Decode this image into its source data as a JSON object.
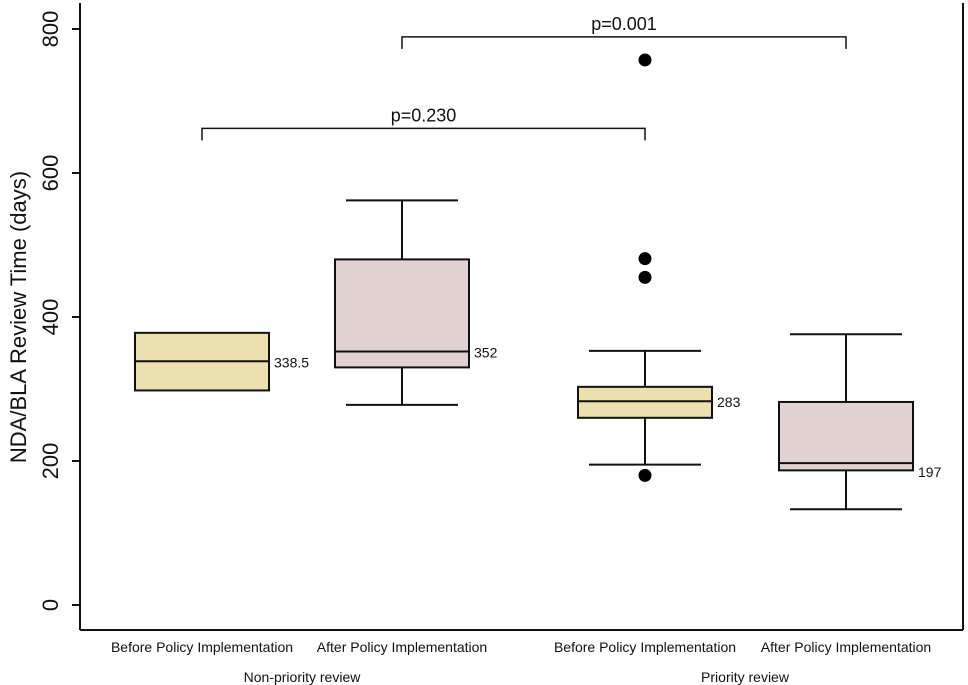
{
  "chart_data": {
    "type": "boxplot",
    "ylabel": "NDA/BLA Review Time (days)",
    "ylim": [
      0,
      800
    ],
    "yticks": [
      0,
      200,
      400,
      600,
      800
    ],
    "groups": [
      "Non-priority review",
      "Priority review"
    ],
    "boxes": [
      {
        "category": "Before Policy Implementation",
        "group": "Non-priority review",
        "color": "#ede0b0",
        "median_label": "338.5",
        "whisker_low": null,
        "q1": 298,
        "median": 338.5,
        "q3": 378,
        "whisker_high": null,
        "outliers": []
      },
      {
        "category": "After Policy Implementation",
        "group": "Non-priority review",
        "color": "#e2d1d1",
        "median_label": "352",
        "whisker_low": 278,
        "q1": 330,
        "median": 352,
        "q3": 480,
        "whisker_high": 562,
        "outliers": []
      },
      {
        "category": "Before Policy Implementation",
        "group": "Priority review",
        "color": "#ede0b0",
        "median_label": "283",
        "whisker_low": 195,
        "q1": 260,
        "median": 283,
        "q3": 303,
        "whisker_high": 353,
        "outliers": [
          180,
          455,
          481,
          757
        ]
      },
      {
        "category": "After Policy Implementation",
        "group": "Priority review",
        "color": "#e2d1d1",
        "median_label": "197",
        "whisker_low": 133,
        "q1": 187,
        "median": 197,
        "q3": 282,
        "whisker_high": 376,
        "outliers": []
      }
    ],
    "significance": [
      {
        "label": "p=0.230",
        "from_box": 0,
        "to_box": 2,
        "y": 662
      },
      {
        "label": "p=0.001",
        "from_box": 1,
        "to_box": 3,
        "y": 789
      }
    ]
  }
}
